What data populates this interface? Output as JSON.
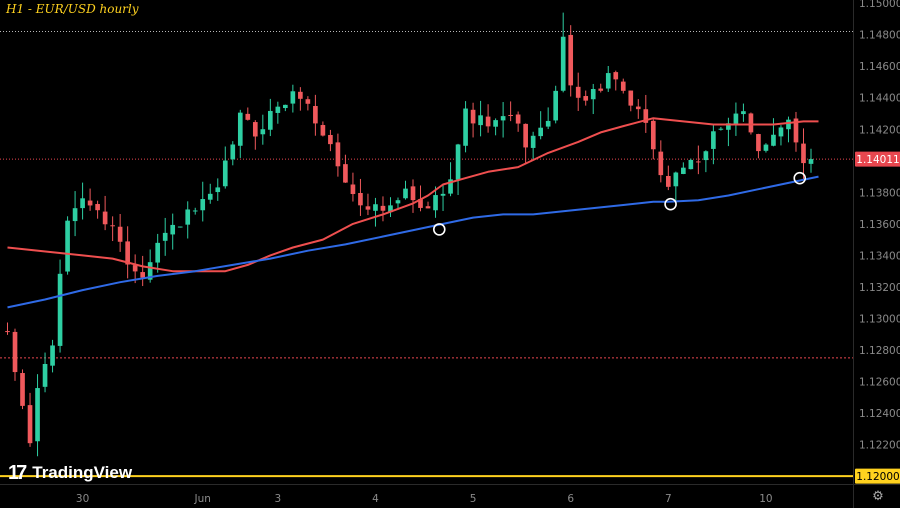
{
  "chart_data": {
    "type": "candlestick",
    "title": "H1 - EUR/USD hourly",
    "symbol": "EUR/USD",
    "timeframe": "H1",
    "ylim": [
      1.1195,
      1.1502
    ],
    "y_ticks": [
      "1.15000",
      "1.14800",
      "1.14600",
      "1.14400",
      "1.14200",
      "1.14000",
      "1.13800",
      "1.13600",
      "1.13400",
      "1.13200",
      "1.13000",
      "1.12800",
      "1.12600",
      "1.12400",
      "1.12200"
    ],
    "x_ticks": [
      {
        "label": "30",
        "index": 10
      },
      {
        "label": "Jun",
        "index": 26
      },
      {
        "label": "3",
        "index": 36
      },
      {
        "label": "4",
        "index": 49
      },
      {
        "label": "5",
        "index": 62
      },
      {
        "label": "6",
        "index": 75
      },
      {
        "label": "7",
        "index": 88
      },
      {
        "label": "10",
        "index": 101
      }
    ],
    "n_candles": 108,
    "current_price": {
      "value": 1.14011,
      "label": "1.14011"
    },
    "horizontal_levels": [
      {
        "value": 1.1482,
        "style": "dotted",
        "color": "#b8b8b8"
      },
      {
        "value": 1.1275,
        "style": "dashed",
        "color": "#e8474f"
      },
      {
        "value": 1.12,
        "style": "solid",
        "color": "#ffd21f",
        "label": "1.12000"
      }
    ],
    "close_anchors": [
      [
        0,
        1.1288
      ],
      [
        3,
        1.1222
      ],
      [
        4,
        1.1255
      ],
      [
        6,
        1.1285
      ],
      [
        8,
        1.1363
      ],
      [
        10,
        1.1378
      ],
      [
        12,
        1.1366
      ],
      [
        14,
        1.136
      ],
      [
        16,
        1.1335
      ],
      [
        18,
        1.133
      ],
      [
        20,
        1.1348
      ],
      [
        22,
        1.1358
      ],
      [
        24,
        1.1365
      ],
      [
        26,
        1.1372
      ],
      [
        28,
        1.138
      ],
      [
        31,
        1.1428
      ],
      [
        33,
        1.1418
      ],
      [
        36,
        1.1435
      ],
      [
        39,
        1.1443
      ],
      [
        41,
        1.1425
      ],
      [
        43,
        1.141
      ],
      [
        45,
        1.1385
      ],
      [
        47,
        1.1375
      ],
      [
        49,
        1.137
      ],
      [
        51,
        1.1368
      ],
      [
        53,
        1.138
      ],
      [
        55,
        1.1368
      ],
      [
        57,
        1.1375
      ],
      [
        59,
        1.1392
      ],
      [
        61,
        1.143
      ],
      [
        63,
        1.1425
      ],
      [
        65,
        1.1423
      ],
      [
        67,
        1.1428
      ],
      [
        69,
        1.1412
      ],
      [
        71,
        1.1418
      ],
      [
        73,
        1.144
      ],
      [
        74,
        1.1478
      ],
      [
        75,
        1.1448
      ],
      [
        77,
        1.144
      ],
      [
        79,
        1.1447
      ],
      [
        80,
        1.1455
      ],
      [
        82,
        1.144
      ],
      [
        84,
        1.143
      ],
      [
        86,
        1.141
      ],
      [
        87,
        1.139
      ],
      [
        88,
        1.1385
      ],
      [
        90,
        1.1398
      ],
      [
        92,
        1.1395
      ],
      [
        94,
        1.142
      ],
      [
        96,
        1.1425
      ],
      [
        98,
        1.1428
      ],
      [
        100,
        1.1405
      ],
      [
        102,
        1.142
      ],
      [
        104,
        1.1425
      ],
      [
        106,
        1.1395
      ],
      [
        107,
        1.1401
      ]
    ],
    "series": [
      {
        "name": "MA red",
        "color": "#ef4f4f",
        "points": [
          [
            0,
            1.1345
          ],
          [
            6,
            1.1342
          ],
          [
            10,
            1.134
          ],
          [
            14,
            1.1338
          ],
          [
            18,
            1.1333
          ],
          [
            22,
            1.133
          ],
          [
            26,
            1.133
          ],
          [
            29,
            1.133
          ],
          [
            32,
            1.1334
          ],
          [
            35,
            1.134
          ],
          [
            38,
            1.1345
          ],
          [
            42,
            1.135
          ],
          [
            46,
            1.136
          ],
          [
            50,
            1.1366
          ],
          [
            54,
            1.1373
          ],
          [
            56,
            1.1378
          ],
          [
            58,
            1.1385
          ],
          [
            61,
            1.1389
          ],
          [
            64,
            1.1393
          ],
          [
            68,
            1.1396
          ],
          [
            72,
            1.1405
          ],
          [
            76,
            1.1412
          ],
          [
            79,
            1.1418
          ],
          [
            82,
            1.1422
          ],
          [
            86,
            1.1427
          ],
          [
            90,
            1.1425
          ],
          [
            94,
            1.1423
          ],
          [
            98,
            1.1423
          ],
          [
            102,
            1.1423
          ],
          [
            106,
            1.1425
          ],
          [
            108,
            1.1425
          ]
        ]
      },
      {
        "name": "MA blue",
        "color": "#2f6ae6",
        "points": [
          [
            0,
            1.1307
          ],
          [
            5,
            1.1312
          ],
          [
            10,
            1.1318
          ],
          [
            15,
            1.1323
          ],
          [
            20,
            1.1327
          ],
          [
            25,
            1.133
          ],
          [
            30,
            1.1334
          ],
          [
            35,
            1.1338
          ],
          [
            40,
            1.1343
          ],
          [
            45,
            1.1347
          ],
          [
            50,
            1.1352
          ],
          [
            55,
            1.1357
          ],
          [
            58,
            1.136
          ],
          [
            62,
            1.1364
          ],
          [
            66,
            1.1366
          ],
          [
            70,
            1.1366
          ],
          [
            74,
            1.1368
          ],
          [
            78,
            1.137
          ],
          [
            82,
            1.1372
          ],
          [
            86,
            1.1374
          ],
          [
            88,
            1.1374
          ],
          [
            92,
            1.1375
          ],
          [
            96,
            1.1378
          ],
          [
            100,
            1.1382
          ],
          [
            104,
            1.1386
          ],
          [
            108,
            1.139
          ]
        ]
      }
    ],
    "markers": [
      {
        "index": 57.5,
        "value": 1.13565,
        "kind": "circle"
      },
      {
        "index": 88.3,
        "value": 1.13725,
        "kind": "circle"
      },
      {
        "index": 105.5,
        "value": 1.1389,
        "kind": "circle"
      }
    ],
    "special_candles": [
      {
        "index": 74,
        "high": 1.1494
      }
    ],
    "candle_colors": {
      "up": "#2ecfa3",
      "down": "#f0595c"
    },
    "axis_color": "#8a8a8a",
    "brand": "TradingView"
  }
}
